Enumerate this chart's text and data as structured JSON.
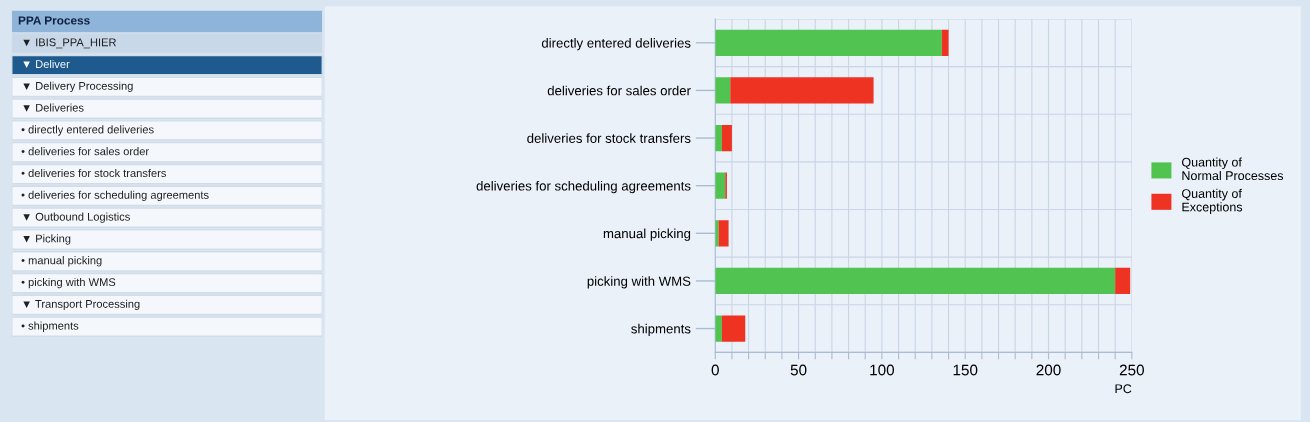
{
  "chart_data": [
    {
      "type": "other",
      "title": "PPA Process",
      "annotations": [
        "▼ IBIS_PPA_HIER",
        "▼ Deliver",
        "▼ Delivery Processing",
        "▼ Deliveries",
        "• directly entered deliveries",
        "• deliveries for sales order",
        "• deliveries for stock transfers",
        "• deliveries for scheduling agreements",
        "▼ Outbound Logistics",
        "▼ Picking",
        "• manual picking",
        "• picking with WMS",
        "▼ Transport Processing",
        "• shipments"
      ]
    },
    {
      "type": "bar",
      "orientation": "horizontal",
      "stacked": true,
      "xlabel": "PC",
      "categories": [
        "directly entered deliveries",
        "deliveries for sales order",
        "deliveries for stock transfers",
        "deliveries for scheduling agreements",
        "manual picking",
        "picking with WMS",
        "shipments"
      ],
      "series": [
        {
          "name": "Quantity of\nNormal Processes",
          "color": "#50c350",
          "values": [
            136,
            9,
            4,
            6,
            2,
            240,
            4
          ]
        },
        {
          "name": "Quantity of\nExceptions",
          "color": "#ee3322",
          "values": [
            4,
            86,
            6,
            1,
            6,
            9,
            14
          ]
        }
      ],
      "xlim": [
        0,
        250
      ],
      "xticks": [
        0,
        {
          "value": 10,
          "label": null
        },
        {
          "value": 20,
          "label": null
        },
        {
          "value": 30,
          "label": null
        },
        {
          "value": 40,
          "label": null
        },
        50,
        {
          "value": 60,
          "label": null
        },
        {
          "value": 70,
          "label": null
        },
        {
          "value": 80,
          "label": null
        },
        {
          "value": 90,
          "label": null
        },
        100,
        {
          "value": 110,
          "label": null
        },
        {
          "value": 120,
          "label": null
        },
        {
          "value": 130,
          "label": null
        },
        {
          "value": 140,
          "label": null
        },
        150,
        {
          "value": 160,
          "label": null
        },
        {
          "value": 170,
          "label": null
        },
        {
          "value": 180,
          "label": null
        },
        {
          "value": 190,
          "label": null
        },
        200,
        {
          "value": 210,
          "label": null
        },
        {
          "value": 220,
          "label": null
        },
        {
          "value": 230,
          "label": null
        },
        {
          "value": 240,
          "label": null
        },
        250
      ],
      "grid": true,
      "legend": "right"
    }
  ]
}
